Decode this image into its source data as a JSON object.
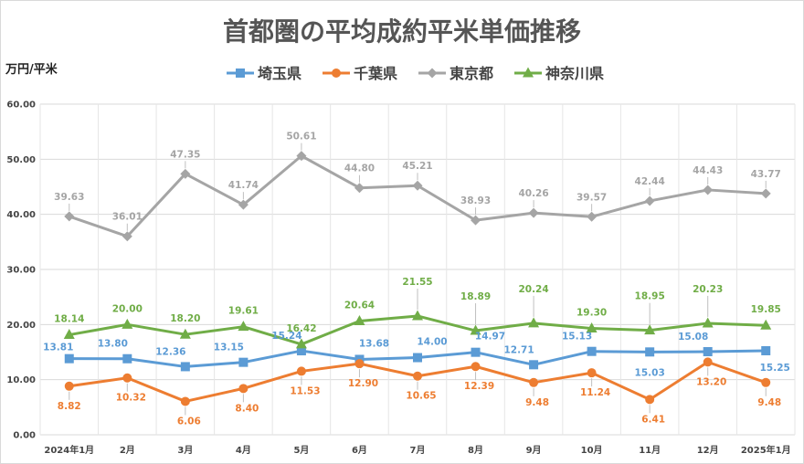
{
  "chart_data": {
    "type": "line",
    "title": "首都圏の平均成約平米単価推移",
    "ylabel": "万円/平米",
    "xlabel": "",
    "ylim": [
      0,
      60
    ],
    "yticks": [
      "0.00",
      "10.00",
      "20.00",
      "30.00",
      "40.00",
      "50.00",
      "60.00"
    ],
    "grid": true,
    "legend_position": "top",
    "categories": [
      "2024年1月",
      "2月",
      "3月",
      "4月",
      "5月",
      "6月",
      "7月",
      "8月",
      "9月",
      "10月",
      "11月",
      "12月",
      "2025年1月"
    ],
    "series": [
      {
        "name": "埼玉県",
        "color": "#5b9bd5",
        "marker": "square",
        "values": [
          13.81,
          13.8,
          12.36,
          13.15,
          15.24,
          13.68,
          14.0,
          14.97,
          12.71,
          15.13,
          15.03,
          15.08,
          15.25
        ],
        "labels": [
          "13.81",
          "13.80",
          "12.36",
          "13.15",
          "15.24",
          "13.68",
          "14.00",
          "14.97",
          "12.71",
          "15.13",
          "15.03",
          "15.08",
          "15.25"
        ]
      },
      {
        "name": "千葉県",
        "color": "#ed7d31",
        "marker": "circle",
        "values": [
          8.82,
          10.32,
          6.06,
          8.4,
          11.53,
          12.9,
          10.65,
          12.39,
          9.48,
          11.24,
          6.41,
          13.2,
          9.48
        ],
        "labels": [
          "8.82",
          "10.32",
          "6.06",
          "8.40",
          "11.53",
          "12.90",
          "10.65",
          "12.39",
          "9.48",
          "11.24",
          "6.41",
          "13.20",
          "9.48"
        ]
      },
      {
        "name": "東京都",
        "color": "#a5a5a5",
        "marker": "diamond",
        "values": [
          39.63,
          36.01,
          47.35,
          41.74,
          50.61,
          44.8,
          45.21,
          38.93,
          40.26,
          39.57,
          42.44,
          44.43,
          43.77
        ],
        "labels": [
          "39.63",
          "36.01",
          "47.35",
          "41.74",
          "50.61",
          "44.80",
          "45.21",
          "38.93",
          "40.26",
          "39.57",
          "42.44",
          "44.43",
          "43.77"
        ]
      },
      {
        "name": "神奈川県",
        "color": "#70ad47",
        "marker": "triangle",
        "values": [
          18.14,
          20.0,
          18.2,
          19.61,
          16.42,
          20.64,
          21.55,
          18.89,
          20.24,
          19.3,
          18.95,
          20.23,
          19.85
        ],
        "labels": [
          "18.14",
          "20.00",
          "18.20",
          "19.61",
          "16.42",
          "20.64",
          "21.55",
          "18.89",
          "20.24",
          "19.30",
          "18.95",
          "20.23",
          "19.85"
        ]
      }
    ]
  }
}
